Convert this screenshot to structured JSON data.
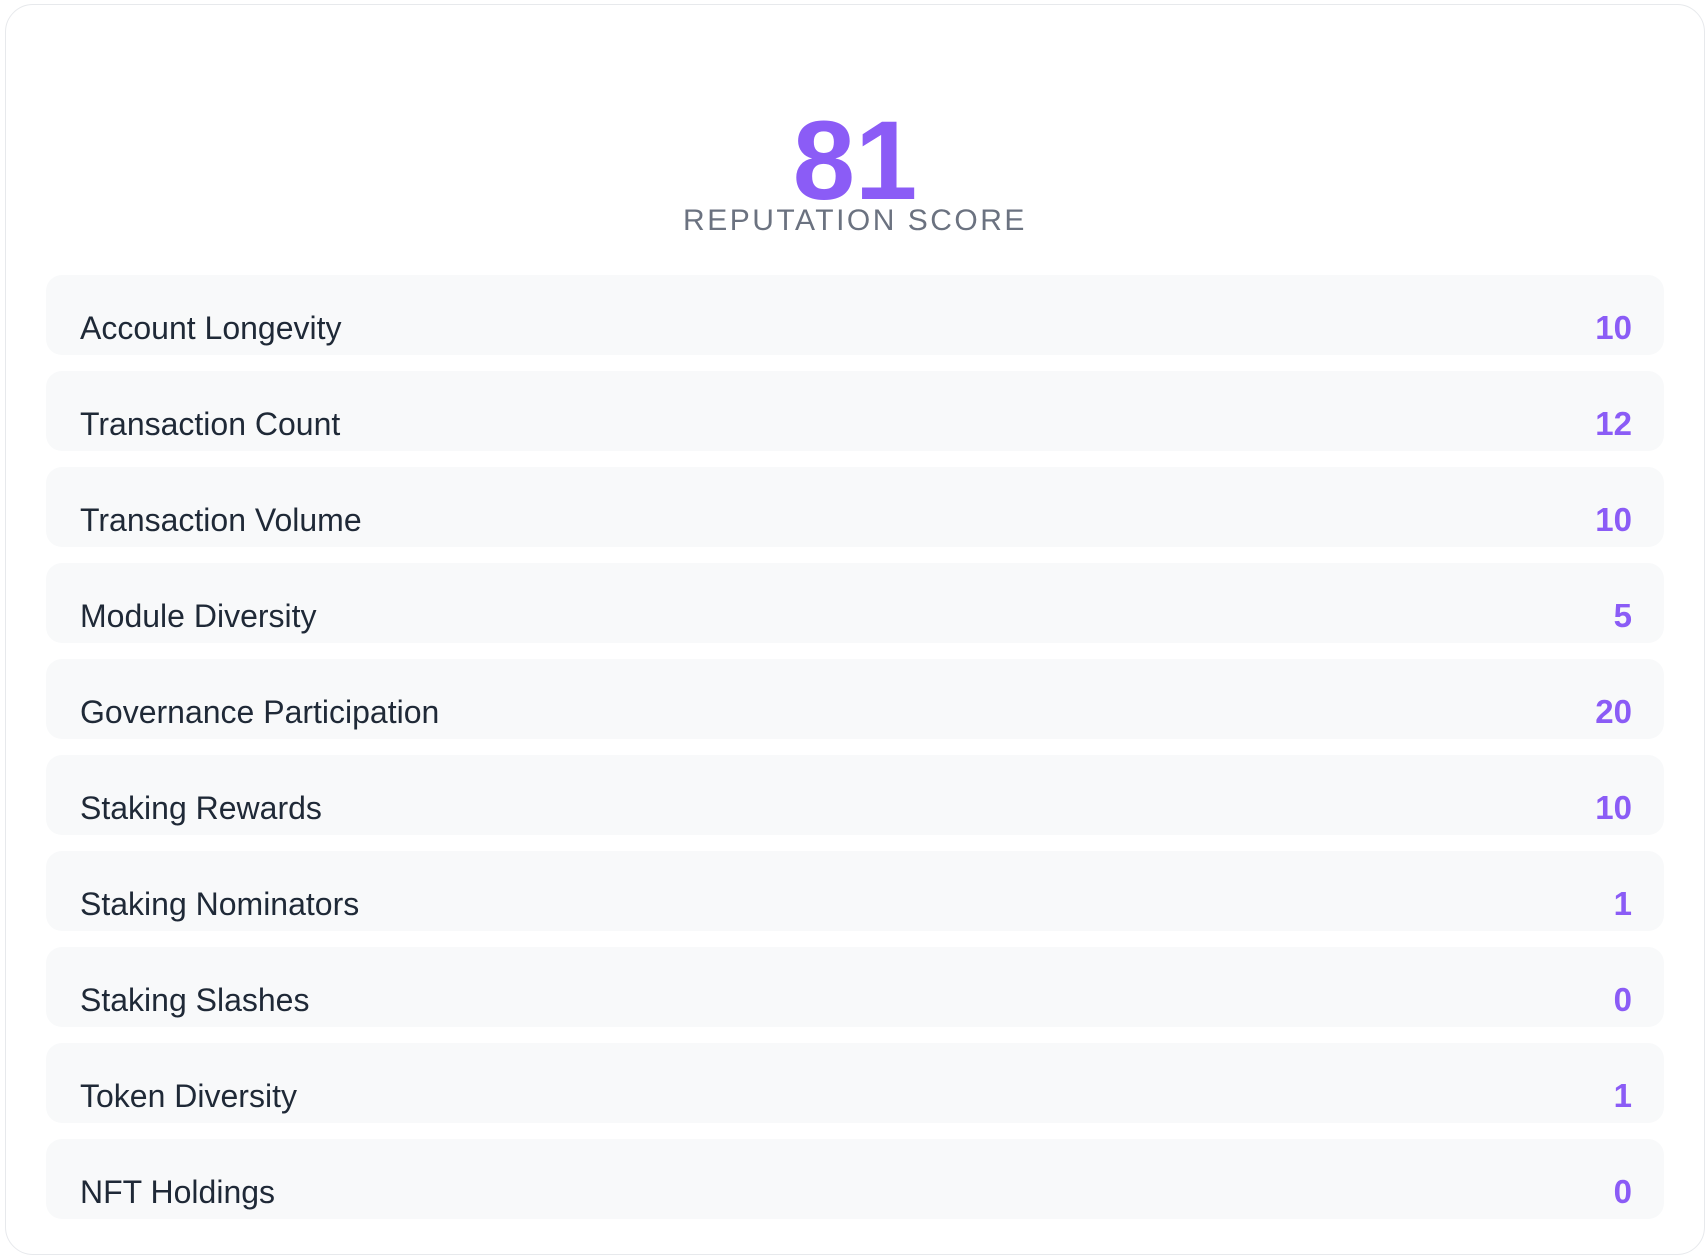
{
  "score": {
    "value": "81",
    "label": "REPUTATION SCORE"
  },
  "metrics": [
    {
      "label": "Account Longevity",
      "value": "10"
    },
    {
      "label": "Transaction Count",
      "value": "12"
    },
    {
      "label": "Transaction Volume",
      "value": "10"
    },
    {
      "label": "Module Diversity",
      "value": "5"
    },
    {
      "label": "Governance Participation",
      "value": "20"
    },
    {
      "label": "Staking Rewards",
      "value": "10"
    },
    {
      "label": "Staking Nominators",
      "value": "1"
    },
    {
      "label": "Staking Slashes",
      "value": "0"
    },
    {
      "label": "Token Diversity",
      "value": "1"
    },
    {
      "label": "NFT Holdings",
      "value": "0"
    }
  ],
  "colors": {
    "accent": "#8b5cf6",
    "label_text": "#1f2937",
    "muted_text": "#6b7280",
    "row_background": "#f8f9fa",
    "card_border": "#e7e9ec",
    "card_background": "#ffffff"
  }
}
